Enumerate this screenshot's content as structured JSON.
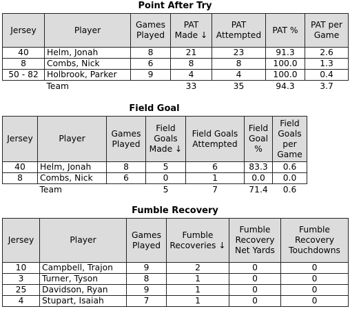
{
  "sections": [
    {
      "title": "Point After Try",
      "headers": [
        "Jersey",
        "Player",
        "Games Played",
        "PAT Made ↓",
        "PAT Attempted",
        "PAT %",
        "PAT per Game"
      ],
      "rows": [
        [
          "40",
          "Helm, Jonah",
          "8",
          "21",
          "23",
          "91.3",
          "2.6"
        ],
        [
          "8",
          "Combs, Nick",
          "6",
          "8",
          "8",
          "100.0",
          "1.3"
        ],
        [
          "50 - 82",
          "Holbrook, Parker",
          "9",
          "4",
          "4",
          "100.0",
          "0.4"
        ]
      ],
      "team": [
        "",
        "Team",
        "",
        "33",
        "35",
        "94.3",
        "3.7"
      ]
    },
    {
      "title": "Field Goal",
      "headers": [
        "Jersey",
        "Player",
        "Games Played",
        "Field Goals Made ↓",
        "Field Goals Attempted",
        "Field Goal %",
        "Field Goals per Game"
      ],
      "rows": [
        [
          "40",
          "Helm, Jonah",
          "8",
          "5",
          "6",
          "83.3",
          "0.6"
        ],
        [
          "8",
          "Combs, Nick",
          "6",
          "0",
          "1",
          "0.0",
          "0.0"
        ]
      ],
      "team": [
        "",
        "Team",
        "",
        "5",
        "7",
        "71.4",
        "0.6"
      ]
    },
    {
      "title": "Fumble Recovery",
      "headers": [
        "Jersey",
        "Player",
        "Games Played",
        "Fumble Recoveries ↓",
        "Fumble Recovery Net Yards",
        "Fumble Recovery Touchdowns"
      ],
      "rows": [
        [
          "10",
          "Campbell, Trajon",
          "9",
          "2",
          "0",
          "0"
        ],
        [
          "3",
          "Turner, Tyson",
          "8",
          "1",
          "0",
          "0"
        ],
        [
          "25",
          "Davidson, Ryan",
          "9",
          "1",
          "0",
          "0"
        ],
        [
          "4",
          "Stupart, Isaiah",
          "7",
          "1",
          "0",
          "0"
        ]
      ]
    }
  ]
}
